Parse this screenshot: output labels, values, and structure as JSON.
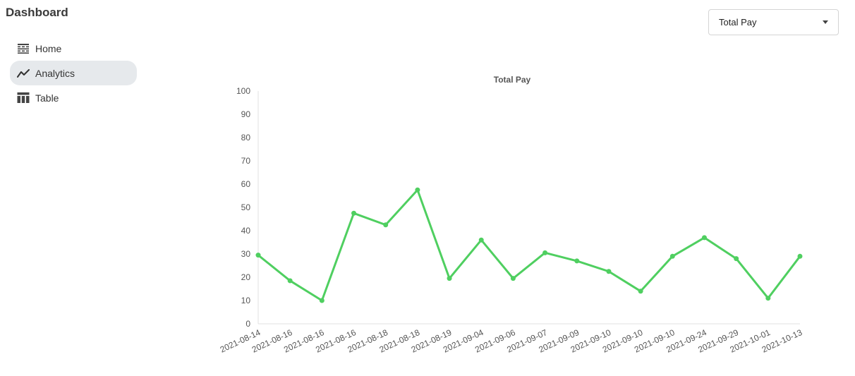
{
  "app": {
    "title": "Dashboard"
  },
  "sidebar": {
    "items": [
      {
        "label": "Home",
        "icon": "home-table-icon",
        "active": false
      },
      {
        "label": "Analytics",
        "icon": "analytics-line-icon",
        "active": true
      },
      {
        "label": "Table",
        "icon": "table-icon",
        "active": false
      }
    ]
  },
  "metric_select": {
    "value": "Total Pay"
  },
  "colors": {
    "line": "#4fcf60",
    "active_nav": "#e6e9ec"
  },
  "chart_data": {
    "type": "line",
    "title": "Total Pay",
    "xlabel": "",
    "ylabel": "",
    "ylim": [
      0,
      100
    ],
    "yticks": [
      0,
      10,
      20,
      30,
      40,
      50,
      60,
      70,
      80,
      90,
      100
    ],
    "categories": [
      "2021-08-14",
      "2021-08-16",
      "2021-08-16",
      "2021-08-16",
      "2021-08-18",
      "2021-08-18",
      "2021-08-19",
      "2021-09-04",
      "2021-09-06",
      "2021-09-07",
      "2021-09-09",
      "2021-09-10",
      "2021-09-10",
      "2021-09-10",
      "2021-09-24",
      "2021-09-29",
      "2021-10-01",
      "2021-10-13"
    ],
    "series": [
      {
        "values": [
          29.5,
          18.5,
          10,
          47.5,
          42.5,
          57.5,
          19.5,
          36,
          19.5,
          30.5,
          27,
          22.5,
          14,
          29,
          37,
          28,
          11,
          29
        ],
        "color": "#4fcf60"
      }
    ],
    "grid": false,
    "legend": "none"
  }
}
